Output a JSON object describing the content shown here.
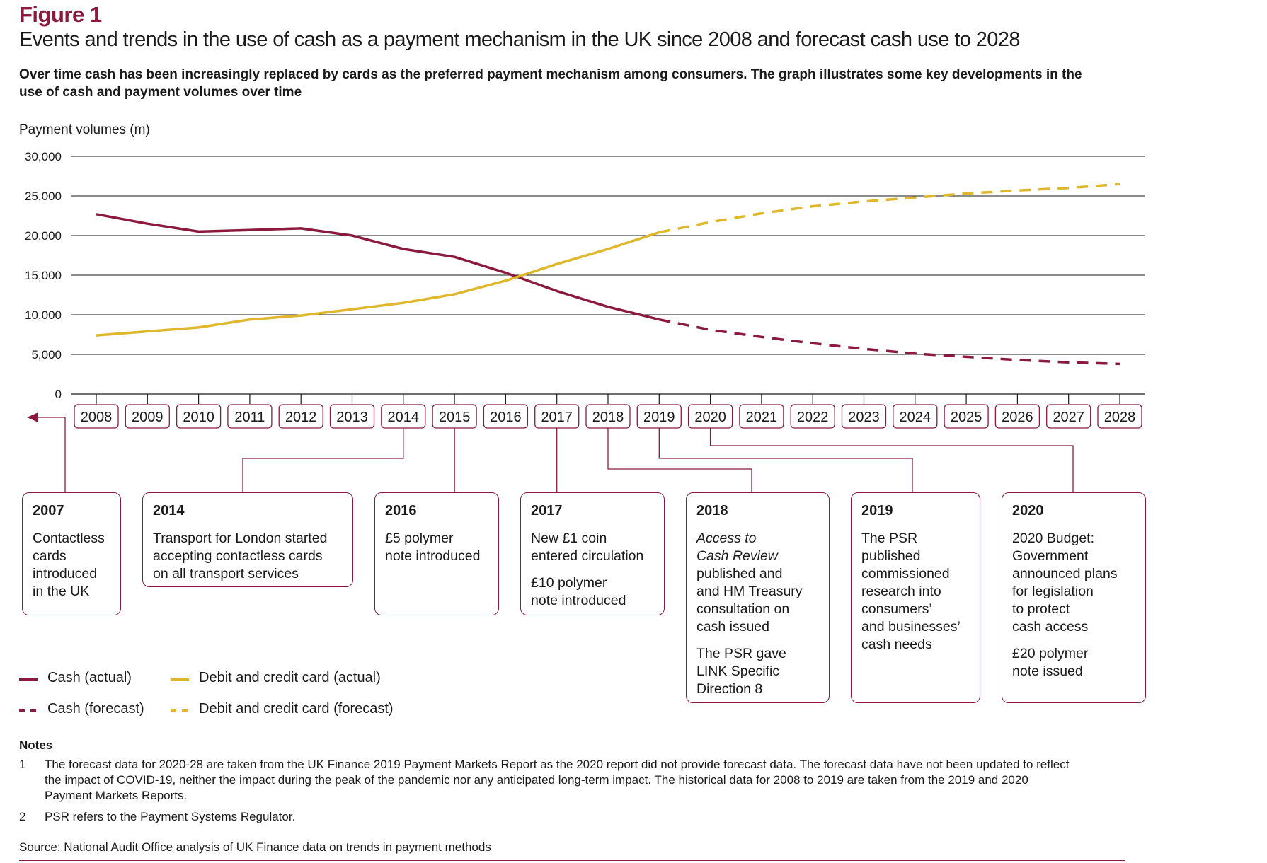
{
  "figure_label": "Figure 1",
  "title": "Events and trends in the use of cash as a payment mechanism in the UK since 2008 and forecast cash use to 2028",
  "subtitle": "Over time cash has been increasingly replaced by cards as the preferred payment mechanism among consumers. The graph illustrates some key developments in the use of cash and payment volumes over time",
  "colors": {
    "cash": "#8b1a3e",
    "card": "#e0b72a",
    "grid": "#1a1a1a",
    "text": "#1a1a1a"
  },
  "chart_data": {
    "type": "line",
    "ylabel": "Payment volumes (m)",
    "ylim": [
      0,
      30000
    ],
    "yticks": [
      "30,000",
      "25,000",
      "20,000",
      "15,000",
      "10,000",
      "5,000",
      "0"
    ],
    "ytick_values": [
      30000,
      25000,
      20000,
      15000,
      10000,
      5000,
      0
    ],
    "x": [
      2008,
      2009,
      2010,
      2011,
      2012,
      2013,
      2014,
      2015,
      2016,
      2017,
      2018,
      2019,
      2020,
      2021,
      2022,
      2023,
      2024,
      2025,
      2026,
      2027,
      2028
    ],
    "xlabels": [
      "2008",
      "2009",
      "2010",
      "2011",
      "2012",
      "2013",
      "2014",
      "2015",
      "2016",
      "2017",
      "2018",
      "2019",
      "2020",
      "2021",
      "2022",
      "2023",
      "2024",
      "2025",
      "2026",
      "2027",
      "2028"
    ],
    "series": [
      {
        "name": "Cash (actual)",
        "style": "solid",
        "color": "#8b1a3e",
        "x": [
          2008,
          2009,
          2010,
          2011,
          2012,
          2013,
          2014,
          2015,
          2016,
          2017,
          2018,
          2019
        ],
        "values": [
          22700,
          21500,
          20500,
          20700,
          20900,
          20000,
          18300,
          17300,
          15300,
          13000,
          11000,
          9400
        ]
      },
      {
        "name": "Cash (forecast)",
        "style": "dashed",
        "color": "#8b1a3e",
        "x": [
          2019,
          2020,
          2021,
          2022,
          2023,
          2024,
          2025,
          2026,
          2027,
          2028
        ],
        "values": [
          9400,
          8100,
          7200,
          6400,
          5700,
          5100,
          4700,
          4300,
          4000,
          3800
        ]
      },
      {
        "name": "Debit and credit card (actual)",
        "style": "solid",
        "color": "#e0b72a",
        "x": [
          2008,
          2009,
          2010,
          2011,
          2012,
          2013,
          2014,
          2015,
          2016,
          2017,
          2018,
          2019
        ],
        "values": [
          7400,
          7900,
          8400,
          9400,
          9900,
          10700,
          11500,
          12600,
          14300,
          16400,
          18300,
          20400
        ]
      },
      {
        "name": "Debit and credit card (forecast)",
        "style": "dashed",
        "color": "#e0b72a",
        "x": [
          2019,
          2020,
          2021,
          2022,
          2023,
          2024,
          2025,
          2026,
          2027,
          2028
        ],
        "values": [
          20400,
          21700,
          22800,
          23700,
          24300,
          24800,
          25300,
          25700,
          26000,
          26500
        ]
      }
    ]
  },
  "events": [
    {
      "year": "2007",
      "lines": [
        "Contactless\ncards\nintroduced\nin the UK"
      ]
    },
    {
      "year": "2014",
      "lines": [
        "Transport for London started\naccepting contactless cards\non all transport services"
      ]
    },
    {
      "year": "2016",
      "lines": [
        "£5 polymer\nnote introduced"
      ]
    },
    {
      "year": "2017",
      "lines": [
        "New £1 coin\nentered circulation",
        "£10 polymer\nnote introduced"
      ]
    },
    {
      "year": "2018",
      "italic": "Access to\nCash Review",
      "lines": [
        "published and\nand HM Treasury\nconsultation on\ncash issued",
        "The PSR gave\nLINK Specific\nDirection 8"
      ]
    },
    {
      "year": "2019",
      "lines": [
        "The PSR\npublished\ncommissioned\nresearch into\nconsumers’\nand businesses’\ncash needs"
      ]
    },
    {
      "year": "2020",
      "lines": [
        "2020 Budget:\nGovernment\nannounced plans\nfor legislation\nto protect\ncash access",
        "£20 polymer\nnote issued"
      ]
    }
  ],
  "legend": {
    "cash_actual": "Cash (actual)",
    "cash_forecast": "Cash (forecast)",
    "card_actual": "Debit and credit card (actual)",
    "card_forecast": "Debit and credit card (forecast)"
  },
  "notes": {
    "title": "Notes",
    "items": [
      {
        "num": "1",
        "text": "The forecast data for 2020-28 are taken from the UK Finance 2019 Payment Markets Report as the 2020 report did not provide forecast data. The forecast data have not been updated to reflect the impact of COVID-19, neither the impact during the peak of the pandemic nor any anticipated long-term impact. The historical data for 2008 to 2019 are taken from the 2019 and 2020 Payment Markets Reports."
      },
      {
        "num": "2",
        "text": "PSR refers to the Payment Systems Regulator."
      }
    ]
  },
  "source": "Source: National Audit Office analysis of UK Finance data on trends in payment methods"
}
